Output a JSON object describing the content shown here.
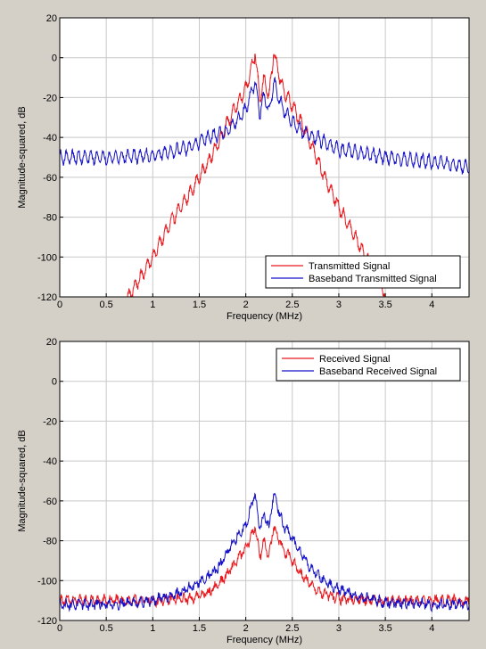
{
  "colors": {
    "background": "#d4d0c8",
    "plot_background": "#ffffff",
    "grid": "#c8c8c8",
    "red_series": "#e8191e",
    "blue_series": "#1410c8"
  },
  "chart_data": [
    {
      "type": "line",
      "title": "",
      "xlabel": "Frequency (MHz)",
      "ylabel": "Magnitude-squared, dB",
      "xlim": [
        0,
        4.4
      ],
      "ylim": [
        -120,
        20
      ],
      "xticks": [
        0,
        0.5,
        1,
        1.5,
        2,
        2.5,
        3,
        3.5,
        4
      ],
      "xtick_labels": [
        "0",
        "0.5",
        "1",
        "1.5",
        "2",
        "2.5",
        "3",
        "3.5",
        "4"
      ],
      "yticks": [
        20,
        0,
        -20,
        -40,
        -60,
        -80,
        -100,
        -120
      ],
      "ytick_labels": [
        "20",
        "0",
        "-20",
        "-40",
        "-60",
        "-80",
        "-100",
        "-120"
      ],
      "grid": true,
      "legend_position": "bottom-right",
      "series": [
        {
          "name": "Transmitted Signal",
          "color": "#e8191e",
          "x": [
            0.7,
            1.0,
            1.2,
            1.4,
            1.6,
            1.7,
            1.8,
            1.9,
            2.0,
            2.1,
            2.15,
            2.2,
            2.25,
            2.3,
            2.4,
            2.5,
            2.6,
            2.7,
            2.8,
            3.0,
            3.2,
            3.4,
            3.5
          ],
          "y": [
            -123,
            -100,
            -82,
            -68,
            -52,
            -43,
            -33,
            -24,
            -16,
            2,
            -20,
            -11,
            -20,
            2,
            -16,
            -24,
            -33,
            -43,
            -55,
            -75,
            -92,
            -110,
            -118
          ]
        },
        {
          "name": "Baseband Transmitted Signal",
          "color": "#1410c8",
          "x": [
            0,
            0.5,
            1.0,
            1.4,
            1.6,
            1.8,
            1.9,
            2.0,
            2.1,
            2.15,
            2.2,
            2.25,
            2.3,
            2.4,
            2.5,
            2.6,
            2.8,
            3.0,
            3.5,
            4.0,
            4.4
          ],
          "y": [
            -50,
            -50,
            -49,
            -45,
            -40,
            -37,
            -32,
            -26,
            -12,
            -28,
            -19,
            -28,
            -12,
            -26,
            -32,
            -37,
            -41,
            -46,
            -50,
            -52,
            -55
          ]
        }
      ]
    },
    {
      "type": "line",
      "title": "",
      "xlabel": "Frequency (MHz)",
      "ylabel": "Magnitude-squared, dB",
      "xlim": [
        0,
        4.4
      ],
      "ylim": [
        -120,
        20
      ],
      "xticks": [
        0,
        0.5,
        1,
        1.5,
        2,
        2.5,
        3,
        3.5,
        4
      ],
      "xtick_labels": [
        "0",
        "0.5",
        "1",
        "1.5",
        "2",
        "2.5",
        "3",
        "3.5",
        "4"
      ],
      "yticks": [
        20,
        0,
        -20,
        -40,
        -60,
        -80,
        -100,
        -120
      ],
      "ytick_labels": [
        "20",
        "0",
        "-20",
        "-40",
        "-60",
        "-80",
        "-100",
        "-120"
      ],
      "grid": true,
      "legend_position": "top-right",
      "series": [
        {
          "name": "Received Signal",
          "color": "#e8191e",
          "x": [
            0,
            0.5,
            1.0,
            1.4,
            1.6,
            1.7,
            1.8,
            1.9,
            2.0,
            2.1,
            2.15,
            2.2,
            2.25,
            2.3,
            2.4,
            2.5,
            2.6,
            2.7,
            2.8,
            3.0,
            3.5,
            4.0,
            4.4
          ],
          "y": [
            -110,
            -110,
            -110,
            -109,
            -106,
            -102,
            -97,
            -90,
            -84,
            -73,
            -88,
            -80,
            -88,
            -73,
            -84,
            -90,
            -97,
            -102,
            -106,
            -109,
            -110,
            -110,
            -110
          ]
        },
        {
          "name": "Baseband Received Signal",
          "color": "#1410c8",
          "x": [
            0,
            0.5,
            1.0,
            1.3,
            1.5,
            1.7,
            1.8,
            1.9,
            2.0,
            2.1,
            2.15,
            2.2,
            2.25,
            2.3,
            2.4,
            2.5,
            2.6,
            2.7,
            2.9,
            3.2,
            3.5,
            4.0,
            4.4
          ],
          "y": [
            -112,
            -112,
            -110,
            -106,
            -101,
            -94,
            -86,
            -79,
            -72,
            -56,
            -74,
            -67,
            -74,
            -56,
            -72,
            -79,
            -86,
            -94,
            -102,
            -108,
            -111,
            -112,
            -112
          ]
        }
      ]
    }
  ]
}
